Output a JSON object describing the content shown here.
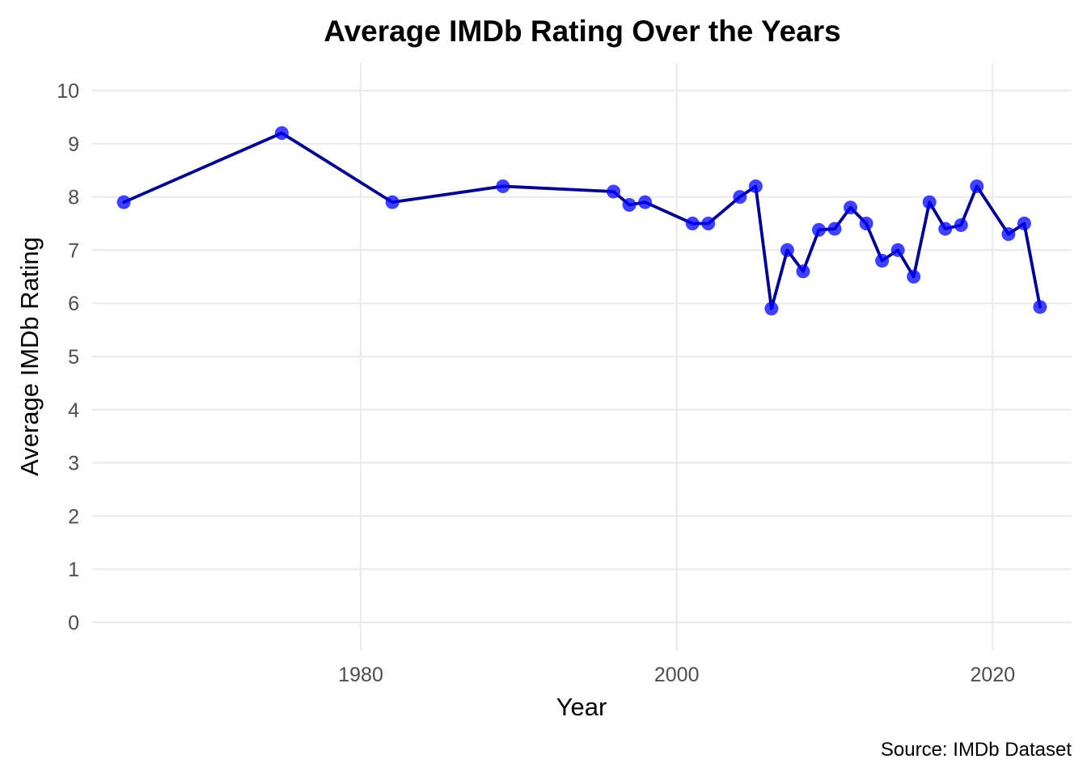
{
  "chart_data": {
    "type": "line",
    "title": "Average IMDb Rating Over the Years",
    "xlabel": "Year",
    "ylabel": "Average IMDb Rating",
    "caption": "Source: IMDb Dataset",
    "xlim": [
      1963,
      2025
    ],
    "ylim": [
      0,
      10
    ],
    "x_ticks": [
      1980,
      2000,
      2020
    ],
    "y_ticks": [
      0,
      1,
      2,
      3,
      4,
      5,
      6,
      7,
      8,
      9,
      10
    ],
    "grid": true,
    "legend": "none",
    "line_color": "#00008b",
    "point_color": "#0000ff",
    "series": [
      {
        "x": [
          1965,
          1975,
          1982,
          1989,
          1996,
          1997,
          1998,
          2001,
          2002,
          2004,
          2005,
          2006,
          2007,
          2008,
          2009,
          2010,
          2011,
          2012,
          2013,
          2014,
          2015,
          2016,
          2017,
          2018,
          2019,
          2021,
          2022,
          2023
        ],
        "y": [
          7.9,
          9.2,
          7.9,
          8.2,
          8.1,
          7.85,
          7.9,
          7.5,
          7.5,
          8.0,
          8.2,
          5.9,
          7.0,
          6.6,
          7.38,
          7.4,
          7.8,
          7.5,
          6.8,
          7.0,
          6.5,
          7.9,
          7.4,
          7.47,
          8.2,
          7.3,
          7.5,
          5.93
        ]
      }
    ]
  }
}
